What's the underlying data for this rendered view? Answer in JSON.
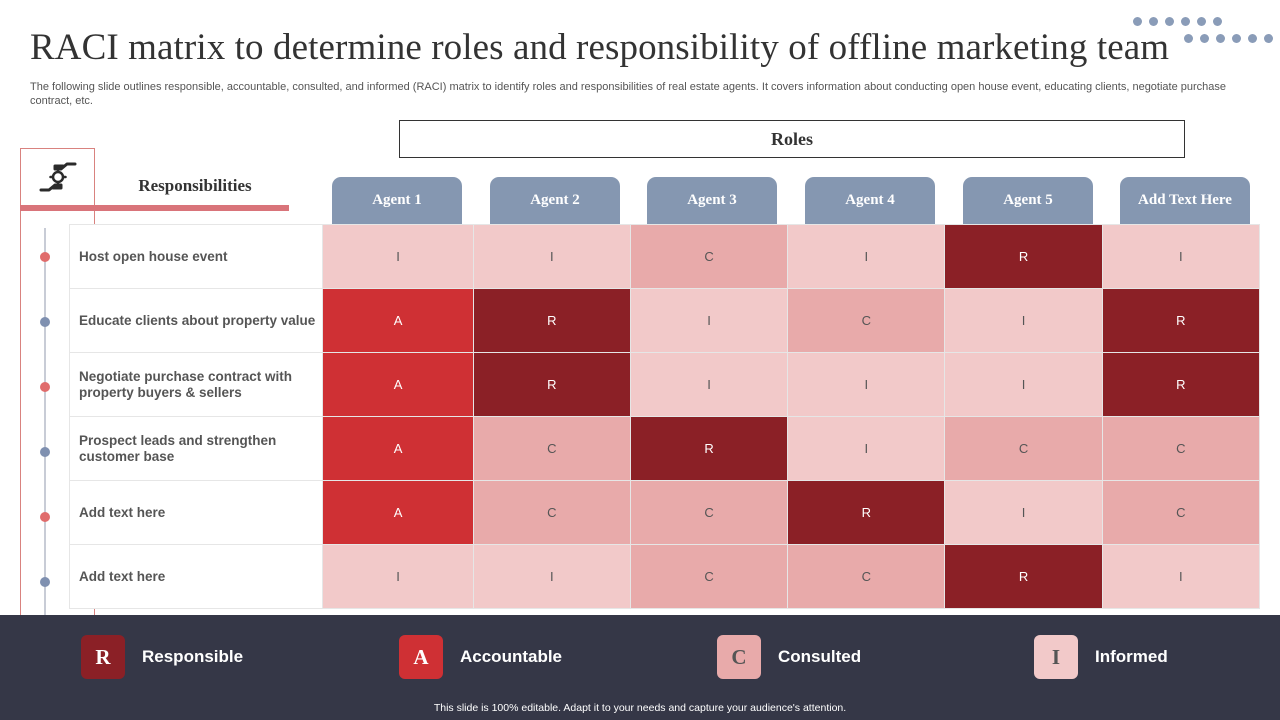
{
  "title": "RACI matrix to determine roles and responsibility of offline marketing team",
  "subtitle": "The following slide outlines responsible, accountable, consulted, and informed (RACI) matrix to identify roles and responsibilities of real estate agents. It covers information about conducting open house event, educating clients, negotiate purchase contract, etc.",
  "roles_header": "Roles",
  "responsibilities_header": "Responsibilities",
  "header_icon": "handshake-gear-icon",
  "agents": [
    "Agent 1",
    "Agent 2",
    "Agent 3",
    "Agent 4",
    "Agent 5",
    "Add Text Here"
  ],
  "rows": [
    {
      "label": "Host open house event",
      "values": [
        "I",
        "I",
        "C",
        "I",
        "R",
        "I"
      ]
    },
    {
      "label": "Educate clients about property value",
      "values": [
        "A",
        "R",
        "I",
        "C",
        "I",
        "R"
      ]
    },
    {
      "label": "Negotiate purchase contract with property buyers & sellers",
      "values": [
        "A",
        "R",
        "I",
        "I",
        "I",
        "R"
      ]
    },
    {
      "label": "Prospect leads and strengthen customer base",
      "values": [
        "A",
        "C",
        "R",
        "I",
        "C",
        "C"
      ]
    },
    {
      "label": "Add text here",
      "values": [
        "A",
        "C",
        "C",
        "R",
        "I",
        "C"
      ]
    },
    {
      "label": "Add text here",
      "values": [
        "I",
        "I",
        "C",
        "C",
        "R",
        "I"
      ]
    }
  ],
  "bullet_colors": [
    "#e06c6c",
    "#7f90b0",
    "#e06c6c",
    "#7f90b0",
    "#e06c6c",
    "#7f90b0"
  ],
  "legend": [
    {
      "letter": "R",
      "label": "Responsible",
      "color": "#8b2026",
      "text_color": "#ffffff"
    },
    {
      "letter": "A",
      "label": "Accountable",
      "color": "#cf3034",
      "text_color": "#ffffff"
    },
    {
      "letter": "C",
      "label": "Consulted",
      "color": "#e8aaaa",
      "text_color": "#555555"
    },
    {
      "letter": "I",
      "label": "Informed",
      "color": "#f2c9c9",
      "text_color": "#555555"
    }
  ],
  "footer": "This slide is 100% editable. Adapt it to your needs and capture your audience's attention.",
  "colors": {
    "agent_header": "#8597b1",
    "legend_background": "#353747",
    "accent": "#d9747a"
  }
}
